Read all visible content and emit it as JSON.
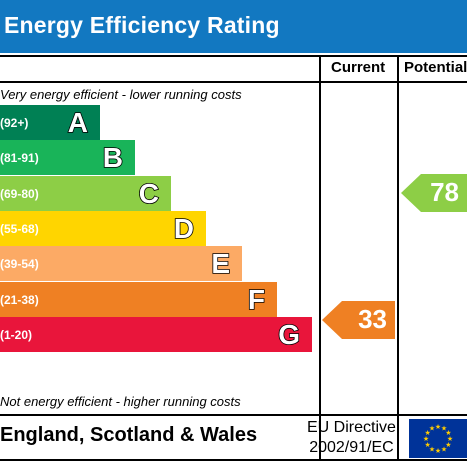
{
  "title": "Energy Efficiency Rating",
  "columns": {
    "current": "Current",
    "potential": "Potential"
  },
  "notes": {
    "top": "Very energy efficient - lower running costs",
    "bottom": "Not energy efficient - higher running costs"
  },
  "bands": [
    {
      "range": "(92+)",
      "letter": "A",
      "color": "#008054"
    },
    {
      "range": "(81-91)",
      "letter": "B",
      "color": "#19b459"
    },
    {
      "range": "(69-80)",
      "letter": "C",
      "color": "#8dce46"
    },
    {
      "range": "(55-68)",
      "letter": "D",
      "color": "#ffd500"
    },
    {
      "range": "(39-54)",
      "letter": "E",
      "color": "#fcaa65"
    },
    {
      "range": "(21-38)",
      "letter": "F",
      "color": "#ef8023"
    },
    {
      "range": "(1-20)",
      "letter": "G",
      "color": "#e9153b"
    }
  ],
  "ratings": {
    "current": {
      "value": "33",
      "band": "F",
      "color": "#ef8023"
    },
    "potential": {
      "value": "78",
      "band": "C",
      "color": "#8dce46"
    }
  },
  "footer": {
    "country": "England, Scotland & Wales",
    "directive_line1": "EU Directive",
    "directive_line2": "2002/91/EC"
  },
  "colors": {
    "header": "#1278c1",
    "eu_flag": "#003399",
    "eu_star": "#ffcc00"
  }
}
